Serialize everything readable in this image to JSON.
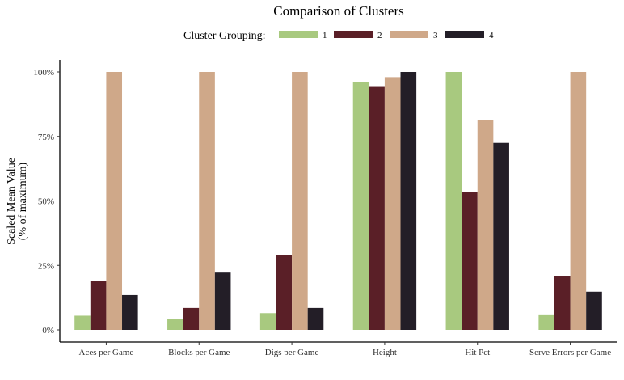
{
  "chart_data": {
    "type": "bar",
    "title": "Comparison of Clusters",
    "legend": {
      "title": "Cluster Grouping:",
      "position": "top"
    },
    "ylabel_line1": "Scaled Mean Value",
    "ylabel_line2": "(% of maximum)",
    "xlabel": "",
    "ylim": [
      0,
      1.04
    ],
    "yticks": [
      0,
      0.25,
      0.5,
      0.75,
      1.0
    ],
    "ytick_labels": [
      "0%",
      "25%",
      "50%",
      "75%",
      "100%"
    ],
    "grid": false,
    "categories": [
      "Aces per Game",
      "Blocks per Game",
      "Digs per Game",
      "Height",
      "Hit Pct",
      "Serve Errors per Game"
    ],
    "series": [
      {
        "name": "1",
        "color": "#a8c97f",
        "values": [
          0.055,
          0.043,
          0.065,
          0.96,
          1.0,
          0.06
        ]
      },
      {
        "name": "2",
        "color": "#5a1f27",
        "values": [
          0.19,
          0.085,
          0.29,
          0.945,
          0.535,
          0.21
        ]
      },
      {
        "name": "3",
        "color": "#cfa889",
        "values": [
          1.0,
          1.0,
          1.0,
          0.98,
          0.815,
          1.0
        ]
      },
      {
        "name": "4",
        "color": "#231e27",
        "values": [
          0.135,
          0.222,
          0.085,
          1.0,
          0.725,
          0.148
        ]
      }
    ]
  }
}
